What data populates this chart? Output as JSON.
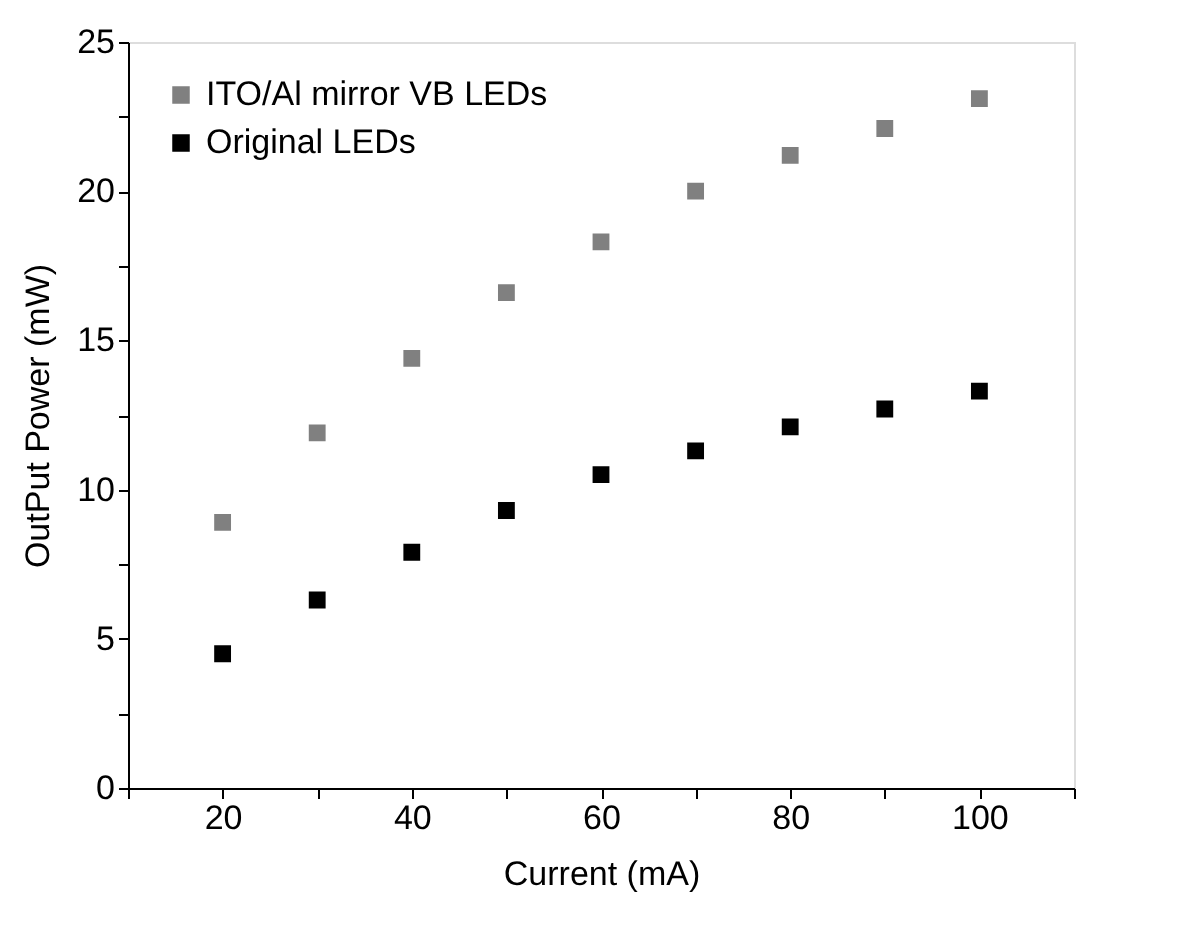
{
  "chart_data": {
    "type": "scatter",
    "xlabel": "Current (mA)",
    "ylabel": "OutPut Power (mW)",
    "x": [
      20,
      30,
      40,
      50,
      60,
      70,
      80,
      90,
      100
    ],
    "series": [
      {
        "name": "ITO/Al mirror VB LEDs",
        "color": "#808080",
        "values": [
          8.9,
          11.9,
          14.4,
          16.6,
          18.3,
          20.0,
          21.2,
          22.1,
          23.1
        ]
      },
      {
        "name": "Original LEDs",
        "color": "#000000",
        "values": [
          4.5,
          6.3,
          7.9,
          9.3,
          10.5,
          11.3,
          12.1,
          12.7,
          13.3
        ]
      }
    ],
    "xlim": [
      10,
      110
    ],
    "ylim": [
      0,
      25
    ],
    "xticks": [
      {
        "value": 10,
        "label": null
      },
      20,
      {
        "value": 30,
        "label": null
      },
      40,
      {
        "value": 50,
        "label": null
      },
      60,
      {
        "value": 70,
        "label": null
      },
      80,
      {
        "value": 90,
        "label": null
      },
      100,
      {
        "value": 110,
        "label": null
      }
    ],
    "yticks": [
      0,
      {
        "value": 2.5,
        "label": null
      },
      5,
      {
        "value": 7.5,
        "label": null
      },
      10,
      {
        "value": 12.5,
        "label": null
      },
      15,
      {
        "value": 17.5,
        "label": null
      },
      20,
      {
        "value": 22.5,
        "label": null
      },
      25
    ],
    "marker": "square",
    "legend": "top left",
    "grid": false
  }
}
